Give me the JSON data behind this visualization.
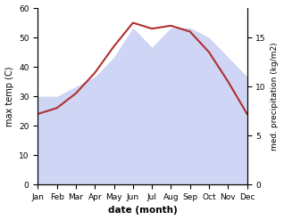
{
  "months": [
    "Jan",
    "Feb",
    "Mar",
    "Apr",
    "May",
    "Jun",
    "Jul",
    "Aug",
    "Sep",
    "Oct",
    "Nov",
    "Dec"
  ],
  "temp": [
    24,
    26,
    31,
    38,
    47,
    55,
    53,
    54,
    52,
    45,
    35,
    24
  ],
  "precip": [
    9,
    9,
    10,
    11,
    13,
    16,
    14,
    16,
    16,
    15,
    13,
    11
  ],
  "temp_ylim": [
    0,
    60
  ],
  "precip_ylim": [
    0,
    18
  ],
  "precip_ticks": [
    0,
    5,
    10,
    15
  ],
  "temp_ticks": [
    0,
    10,
    20,
    30,
    40,
    50,
    60
  ],
  "fill_color": "#b0baee",
  "fill_alpha": 0.6,
  "line_color": "#b03030",
  "line_width": 1.5,
  "xlabel": "date (month)",
  "ylabel_left": "max temp (C)",
  "ylabel_right": "med. precipitation (kg/m2)",
  "background_color": "#ffffff"
}
